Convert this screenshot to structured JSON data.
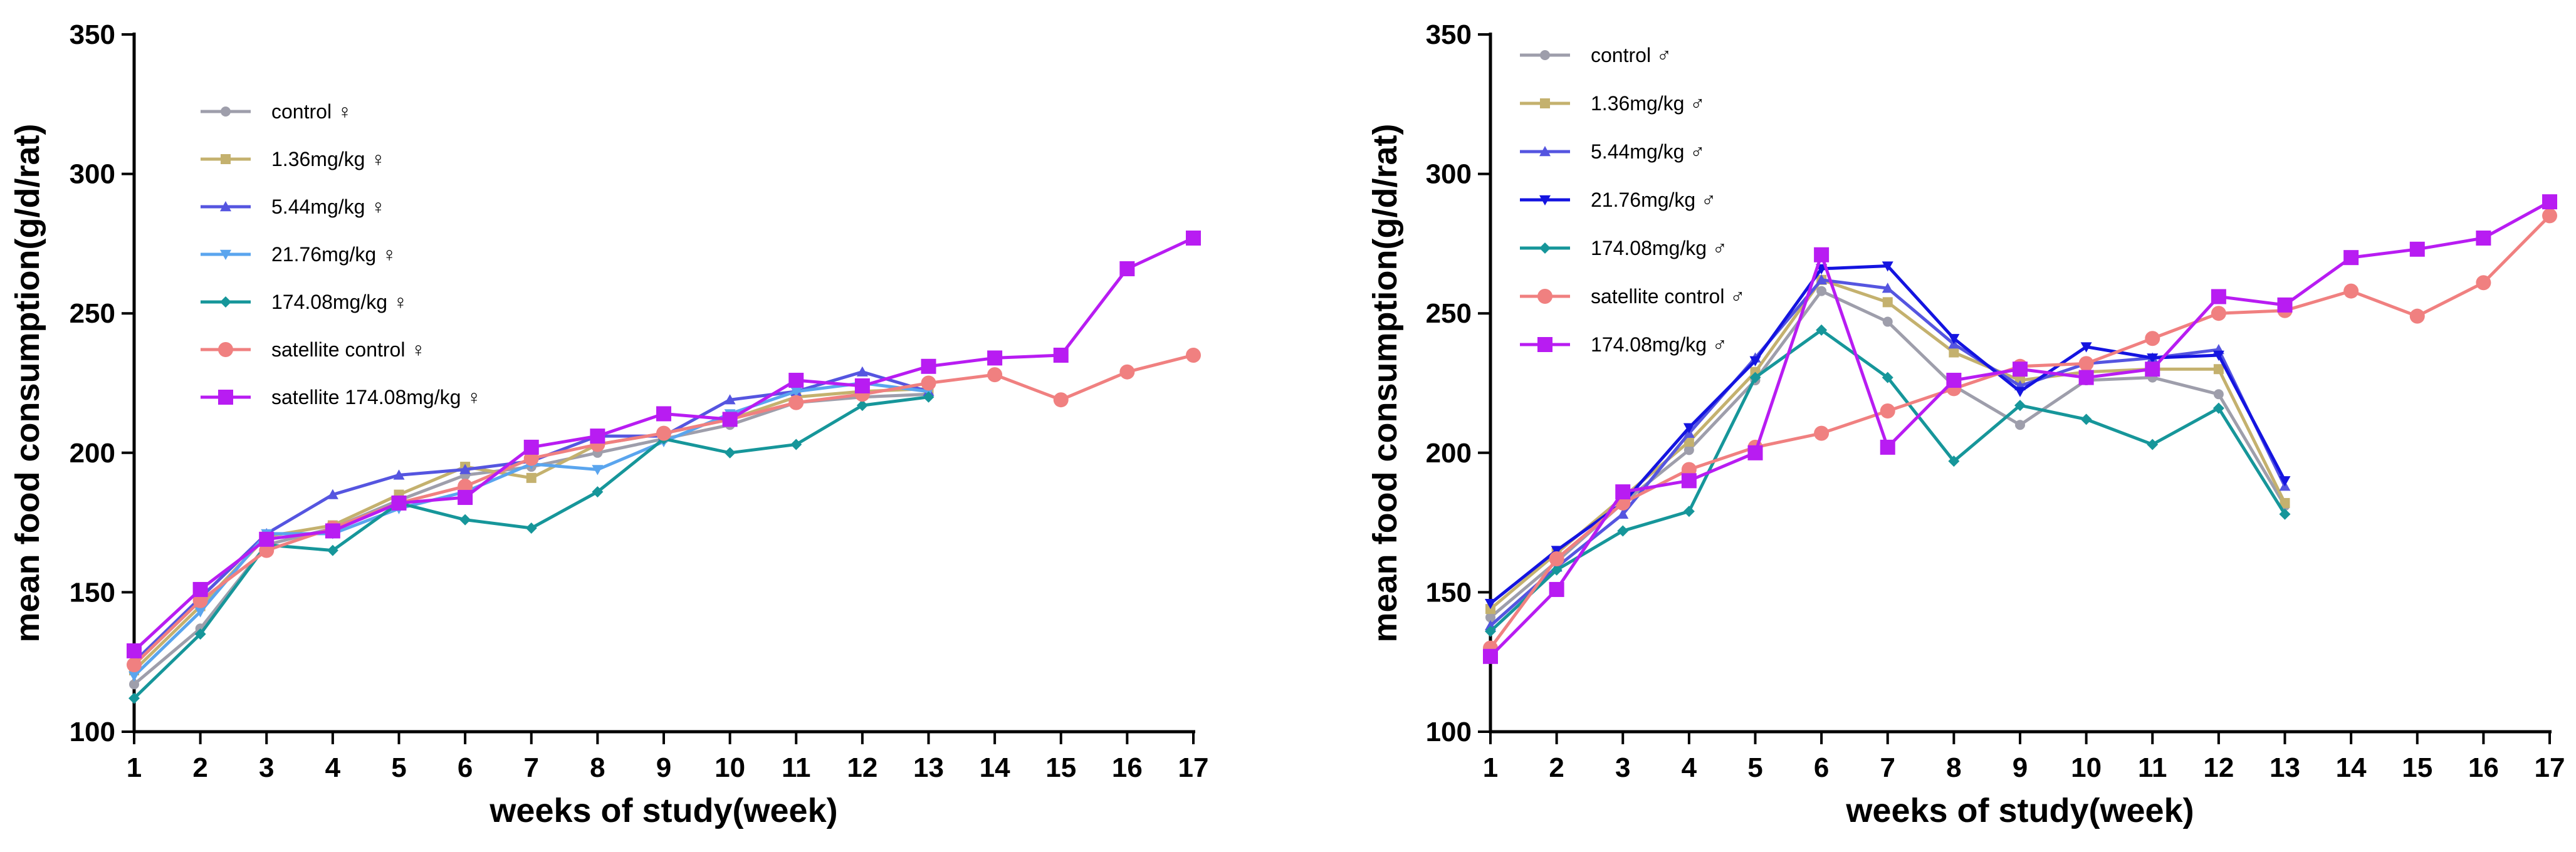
{
  "chart_data": [
    {
      "type": "line",
      "xlabel": "weeks of study(week)",
      "ylabel": "mean food consumption(g/d/rat)",
      "xlim": [
        1,
        17
      ],
      "ylim": [
        100,
        350
      ],
      "yticks": [
        100,
        150,
        200,
        250,
        300,
        350
      ],
      "x": [
        1,
        2,
        3,
        4,
        5,
        6,
        7,
        8,
        9,
        10,
        11,
        12,
        13,
        14,
        15,
        16,
        17
      ],
      "legend_position": "top-left",
      "series": [
        {
          "name": "control ♀",
          "color": "#9e9eab",
          "marker": "circle-small",
          "x": [
            1,
            2,
            3,
            4,
            5,
            6,
            7,
            8,
            9,
            10,
            11,
            12,
            13
          ],
          "values": [
            117,
            137,
            167,
            173,
            183,
            192,
            195,
            200,
            205,
            210,
            218,
            220,
            221
          ]
        },
        {
          "name": "1.36mg/kg ♀",
          "color": "#c4b16e",
          "marker": "square-small",
          "x": [
            1,
            2,
            3,
            4,
            5,
            6,
            7,
            8,
            9,
            10,
            11,
            12,
            13
          ],
          "values": [
            122,
            145,
            170,
            174,
            185,
            195,
            191,
            203,
            207,
            212,
            220,
            222,
            223
          ]
        },
        {
          "name": "5.44mg/kg ♀",
          "color": "#5555e0",
          "marker": "triangle-up",
          "x": [
            1,
            2,
            3,
            4,
            5,
            6,
            7,
            8,
            9,
            10,
            11,
            12,
            13
          ],
          "values": [
            125,
            148,
            171,
            185,
            192,
            194,
            197,
            206,
            206,
            219,
            222,
            229,
            222
          ]
        },
        {
          "name": "21.76mg/kg ♀",
          "color": "#5aa5ee",
          "marker": "triangle-down",
          "x": [
            1,
            2,
            3,
            4,
            5,
            6,
            7,
            8,
            9,
            10,
            11,
            12,
            13
          ],
          "values": [
            120,
            143,
            171,
            171,
            180,
            186,
            196,
            194,
            204,
            214,
            222,
            225,
            222
          ]
        },
        {
          "name": "174.08mg/kg ♀",
          "color": "#16969a",
          "marker": "diamond",
          "x": [
            1,
            2,
            3,
            4,
            5,
            6,
            7,
            8,
            9,
            10,
            11,
            12,
            13
          ],
          "values": [
            112,
            135,
            167,
            165,
            182,
            176,
            173,
            186,
            205,
            200,
            203,
            217,
            220
          ]
        },
        {
          "name": "satellite control ♀",
          "color": "#f08080",
          "marker": "circle",
          "x": [
            1,
            2,
            3,
            4,
            5,
            6,
            7,
            8,
            9,
            10,
            11,
            12,
            13,
            14,
            15,
            16,
            17
          ],
          "values": [
            124,
            147,
            165,
            173,
            182,
            188,
            198,
            203,
            207,
            212,
            218,
            221,
            225,
            228,
            219,
            229,
            235
          ]
        },
        {
          "name": "satellite 174.08mg/kg ♀",
          "color": "#b81cf2",
          "marker": "square",
          "x": [
            1,
            2,
            3,
            4,
            5,
            6,
            7,
            8,
            9,
            10,
            11,
            12,
            13,
            14,
            15,
            16,
            17
          ],
          "values": [
            129,
            151,
            169,
            172,
            182,
            184,
            202,
            206,
            214,
            212,
            226,
            224,
            231,
            234,
            235,
            266,
            277
          ]
        }
      ]
    },
    {
      "type": "line",
      "xlabel": "weeks of study(week)",
      "ylabel": "mean food consumption(g/d/rat)",
      "xlim": [
        1,
        17
      ],
      "ylim": [
        100,
        350
      ],
      "yticks": [
        100,
        150,
        200,
        250,
        300,
        350
      ],
      "x": [
        1,
        2,
        3,
        4,
        5,
        6,
        7,
        8,
        9,
        10,
        11,
        12,
        13,
        14,
        15,
        16,
        17
      ],
      "legend_position": "top-left",
      "series": [
        {
          "name": "control ♂",
          "color": "#9e9eab",
          "marker": "circle-small",
          "x": [
            1,
            2,
            3,
            4,
            5,
            6,
            7,
            8,
            9,
            10,
            11,
            12,
            13
          ],
          "values": [
            141,
            161,
            182,
            201,
            226,
            258,
            247,
            224,
            210,
            226,
            227,
            221,
            181
          ]
        },
        {
          "name": "1.36mg/kg ♂",
          "color": "#c4b16e",
          "marker": "square-small",
          "x": [
            1,
            2,
            3,
            4,
            5,
            6,
            7,
            8,
            9,
            10,
            11,
            12,
            13
          ],
          "values": [
            144,
            164,
            184,
            204,
            229,
            262,
            254,
            236,
            226,
            229,
            230,
            230,
            182
          ]
        },
        {
          "name": "5.44mg/kg ♂",
          "color": "#5555e0",
          "marker": "triangle-up",
          "x": [
            1,
            2,
            3,
            4,
            5,
            6,
            7,
            8,
            9,
            10,
            11,
            12,
            13
          ],
          "values": [
            138,
            159,
            178,
            207,
            234,
            262,
            259,
            239,
            224,
            232,
            234,
            237,
            188
          ]
        },
        {
          "name": "21.76mg/kg ♂",
          "color": "#1414e0",
          "marker": "triangle-down",
          "x": [
            1,
            2,
            3,
            4,
            5,
            6,
            7,
            8,
            9,
            10,
            11,
            12,
            13
          ],
          "values": [
            146,
            165,
            182,
            209,
            233,
            266,
            267,
            241,
            222,
            238,
            234,
            235,
            190
          ]
        },
        {
          "name": "174.08mg/kg ♂",
          "color": "#16969a",
          "marker": "diamond",
          "x": [
            1,
            2,
            3,
            4,
            5,
            6,
            7,
            8,
            9,
            10,
            11,
            12,
            13
          ],
          "values": [
            136,
            158,
            172,
            179,
            227,
            244,
            227,
            197,
            217,
            212,
            203,
            216,
            178
          ]
        },
        {
          "name": "satellite control ♂",
          "color": "#f08080",
          "marker": "circle",
          "x": [
            1,
            2,
            3,
            4,
            5,
            6,
            7,
            8,
            9,
            10,
            11,
            12,
            13,
            14,
            15,
            16,
            17
          ],
          "values": [
            130,
            162,
            182,
            194,
            202,
            207,
            215,
            223,
            231,
            232,
            241,
            250,
            251,
            258,
            249,
            261,
            285
          ]
        },
        {
          "name": "174.08mg/kg ♂",
          "color": "#b81cf2",
          "marker": "square",
          "x": [
            1,
            2,
            3,
            4,
            5,
            6,
            7,
            8,
            9,
            10,
            11,
            12,
            13,
            14,
            15,
            16,
            17
          ],
          "values": [
            127,
            151,
            186,
            190,
            200,
            271,
            202,
            226,
            230,
            227,
            230,
            256,
            253,
            270,
            273,
            277,
            290
          ]
        }
      ]
    }
  ]
}
